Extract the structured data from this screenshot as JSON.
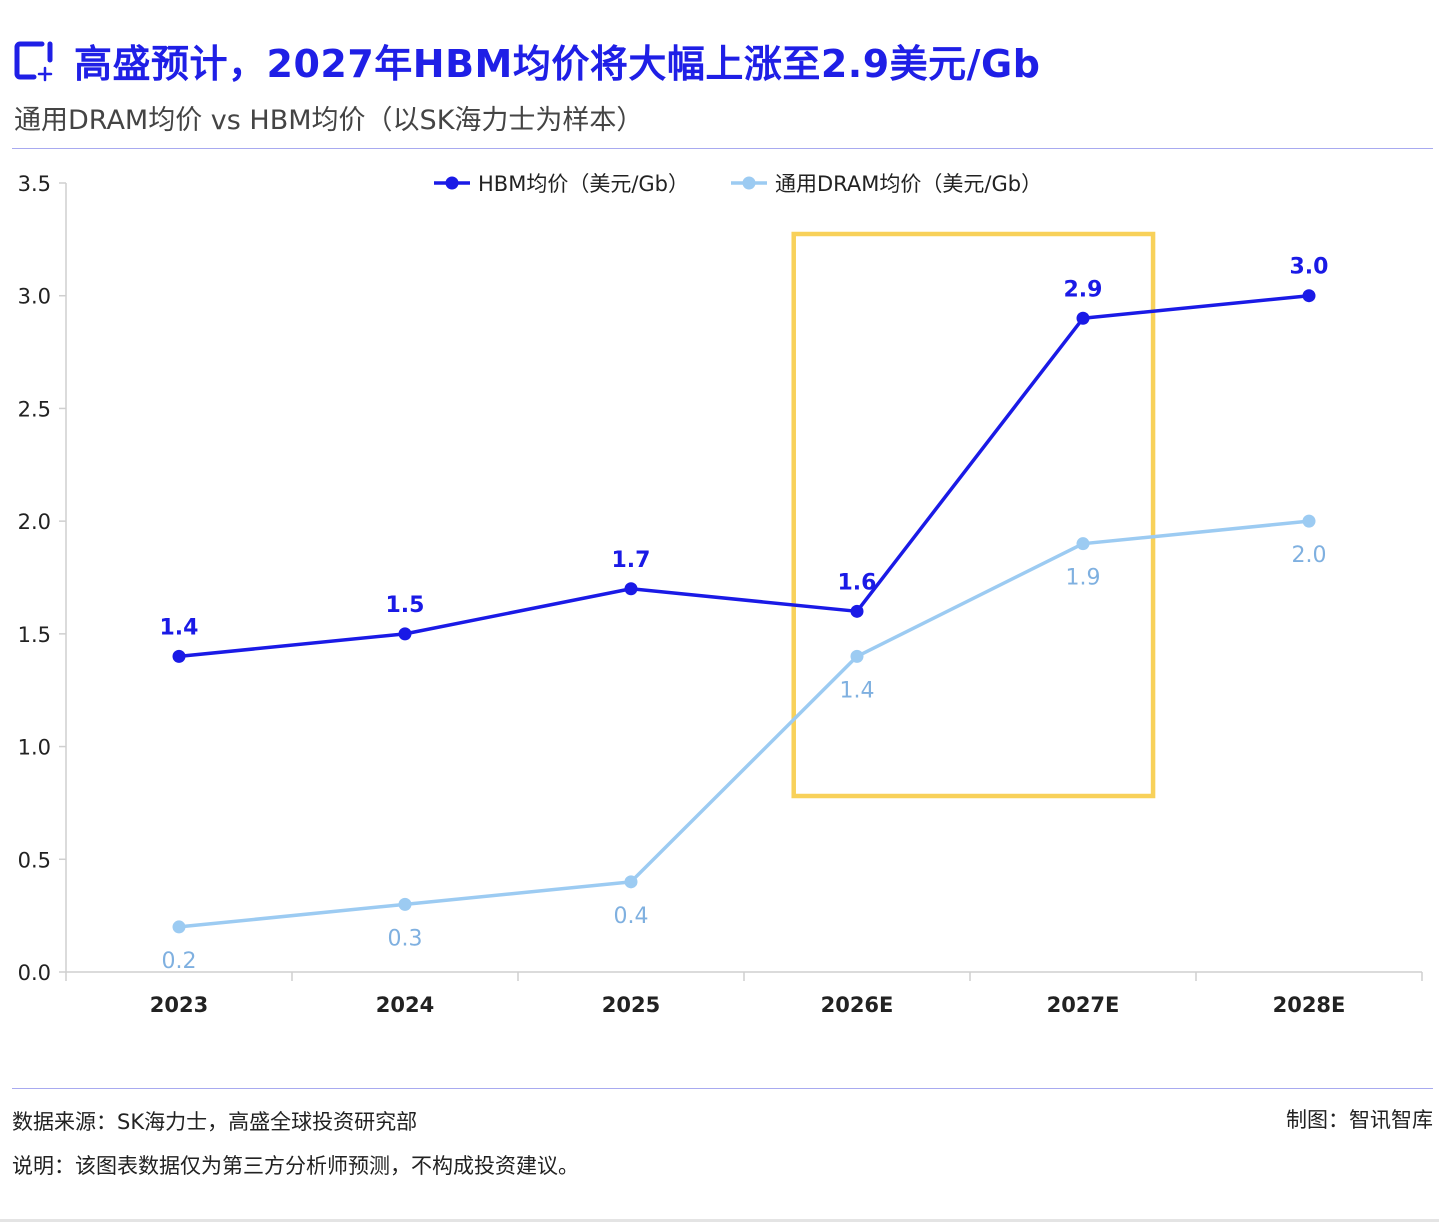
{
  "header": {
    "title": "高盛预计，2027年HBM均价将大幅上涨至2.9美元/Gb",
    "subtitle": "通用DRAM均价 vs HBM均价（以SK海力士为样本）",
    "icon": "chart-plus-icon"
  },
  "footer": {
    "source": "数据来源：SK海力士，高盛全球投资研究部",
    "note": "说明：该图表数据仅为第三方分析师预测，不构成投资建议。",
    "credit": "制图：智讯智库"
  },
  "colors": {
    "title": "#1f1fe6",
    "hbm": "#1a1ae6",
    "dram": "#9ccbf2",
    "dram_label": "#7fb0e0",
    "highlight": "#f8d15a",
    "axis": "#cfcfcf"
  },
  "chart_data": {
    "type": "line",
    "categories": [
      "2023",
      "2024",
      "2025",
      "2026E",
      "2027E",
      "2028E"
    ],
    "ylim": [
      0,
      3.5
    ],
    "yticks": [
      "0.0",
      "0.5",
      "1.0",
      "1.5",
      "2.0",
      "2.5",
      "3.0",
      "3.5"
    ],
    "grid": false,
    "legend_position": "top-center",
    "highlight_categories": [
      "2026E",
      "2027E"
    ],
    "series": [
      {
        "name": "HBM均价（美元/Gb）",
        "values": [
          1.4,
          1.5,
          1.7,
          1.6,
          2.9,
          3.0
        ],
        "labels": [
          "1.4",
          "1.5",
          "1.7",
          "1.6",
          "2.9",
          "3.0"
        ],
        "label_position": "above"
      },
      {
        "name": "通用DRAM均价（美元/Gb）",
        "values": [
          0.2,
          0.3,
          0.4,
          1.4,
          1.9,
          2.0
        ],
        "labels": [
          "0.2",
          "0.3",
          "0.4",
          "1.4",
          "1.9",
          "2.0"
        ],
        "label_position": "below"
      }
    ]
  }
}
